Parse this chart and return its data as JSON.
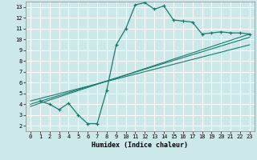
{
  "xlabel": "Humidex (Indice chaleur)",
  "bg_color": "#cce8e8",
  "grid_color": "#b0d4d4",
  "line_color": "#1a7a6e",
  "xlim": [
    -0.5,
    23.5
  ],
  "ylim": [
    1.5,
    13.5
  ],
  "xticks": [
    0,
    1,
    2,
    3,
    4,
    5,
    6,
    7,
    8,
    9,
    10,
    11,
    12,
    13,
    14,
    15,
    16,
    17,
    18,
    19,
    20,
    21,
    22,
    23
  ],
  "yticks": [
    2,
    3,
    4,
    5,
    6,
    7,
    8,
    9,
    10,
    11,
    12,
    13
  ],
  "curve1_x": [
    1,
    2,
    3,
    4,
    5,
    6,
    7,
    8,
    9,
    10,
    11,
    12,
    13,
    14,
    15,
    16,
    17,
    18,
    19,
    20,
    21,
    22,
    23
  ],
  "curve1_y": [
    4.3,
    4.0,
    3.5,
    4.1,
    3.0,
    2.2,
    2.2,
    5.3,
    9.5,
    11.0,
    13.2,
    13.4,
    12.8,
    13.1,
    11.8,
    11.7,
    11.6,
    10.5,
    10.6,
    10.7,
    10.6,
    10.6,
    10.5
  ],
  "line2_x": [
    0,
    23
  ],
  "line2_y": [
    3.8,
    10.5
  ],
  "line3_x": [
    0,
    23
  ],
  "line3_y": [
    4.0,
    10.2
  ],
  "line4_x": [
    0,
    23
  ],
  "line4_y": [
    4.3,
    9.5
  ]
}
